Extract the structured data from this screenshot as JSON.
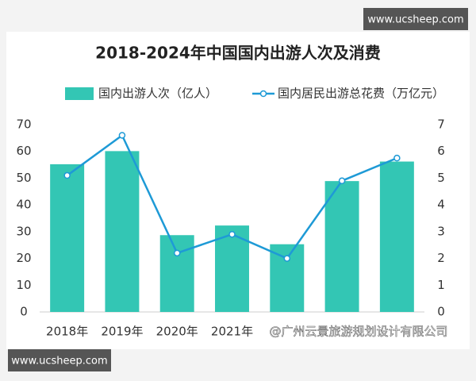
{
  "chart_data": {
    "type": "bar",
    "title": "2018-2024年中国国内出游人次及消费",
    "categories": [
      "2018年",
      "2019年",
      "2020年",
      "2021年",
      null,
      null,
      null
    ],
    "series": [
      {
        "name": "国内出游人次（亿人）",
        "type": "bar",
        "color": "#33c6b4",
        "values": [
          55.2,
          60.1,
          28.7,
          32.3,
          25.3,
          48.9,
          56.2
        ]
      },
      {
        "name": "国内居民出游总花费（万亿元）",
        "type": "line",
        "axis": "y2",
        "color": "#1e9ad6",
        "values": [
          5.1,
          6.6,
          2.2,
          2.9,
          2.0,
          4.9,
          5.75
        ]
      }
    ],
    "ylim": [
      0,
      70
    ],
    "yticks": [
      0,
      10,
      20,
      30,
      40,
      50,
      60,
      70
    ],
    "y2lim": [
      0,
      7
    ],
    "y2ticks": [
      0,
      1,
      2,
      3,
      4,
      5,
      6,
      7
    ],
    "grid": false
  },
  "watermarks": {
    "top": "www.ucsheep.com",
    "bottom": "www.ucsheep.com",
    "source": "@广州云景旅游规划设计有限公司"
  }
}
